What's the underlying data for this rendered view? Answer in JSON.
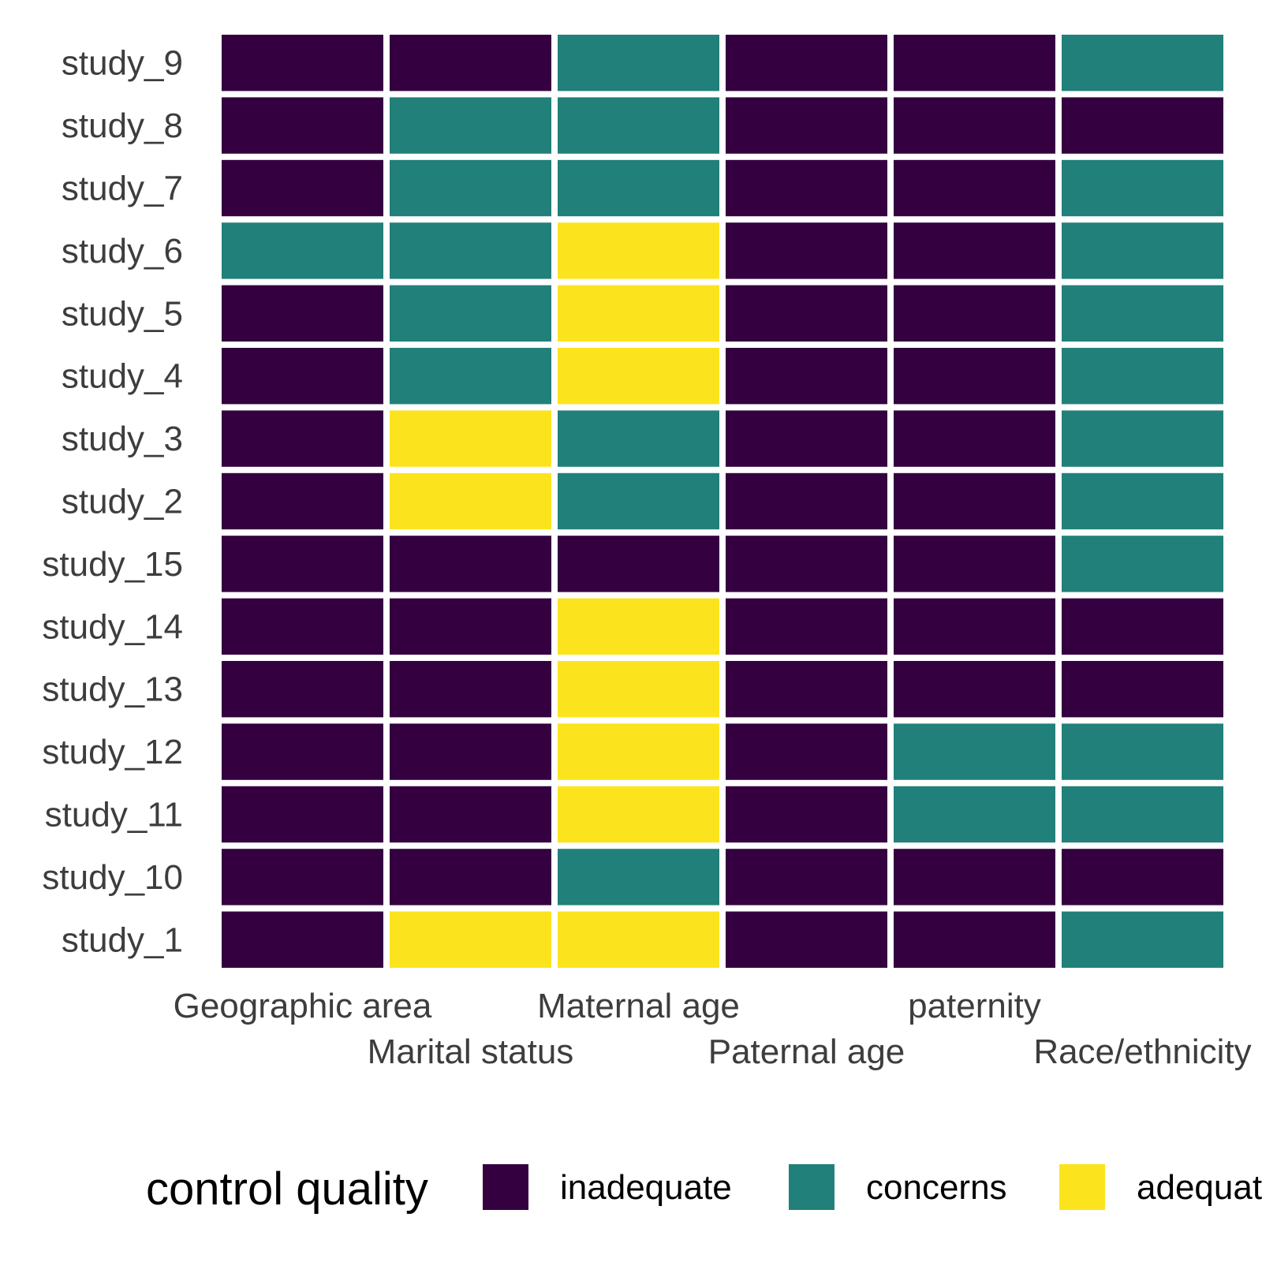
{
  "chart_data": {
    "type": "heatmap",
    "x_categories": [
      "Geographic area",
      "Marital status",
      "Maternal age",
      "Paternal age",
      "paternity",
      "Race/ethnicity"
    ],
    "y_categories": [
      "study_9",
      "study_8",
      "study_7",
      "study_6",
      "study_5",
      "study_4",
      "study_3",
      "study_2",
      "study_15",
      "study_14",
      "study_13",
      "study_12",
      "study_11",
      "study_10",
      "study_1"
    ],
    "levels": [
      "inadequate",
      "concerns",
      "adequate"
    ],
    "level_colors": {
      "inadequate": "#340040",
      "concerns": "#21807a",
      "adequate": "#fbe41d"
    },
    "cells": [
      [
        "inadequate",
        "inadequate",
        "concerns",
        "inadequate",
        "inadequate",
        "concerns"
      ],
      [
        "inadequate",
        "concerns",
        "concerns",
        "inadequate",
        "inadequate",
        "inadequate"
      ],
      [
        "inadequate",
        "concerns",
        "concerns",
        "inadequate",
        "inadequate",
        "concerns"
      ],
      [
        "concerns",
        "concerns",
        "adequate",
        "inadequate",
        "inadequate",
        "concerns"
      ],
      [
        "inadequate",
        "concerns",
        "adequate",
        "inadequate",
        "inadequate",
        "concerns"
      ],
      [
        "inadequate",
        "concerns",
        "adequate",
        "inadequate",
        "inadequate",
        "concerns"
      ],
      [
        "inadequate",
        "adequate",
        "concerns",
        "inadequate",
        "inadequate",
        "concerns"
      ],
      [
        "inadequate",
        "adequate",
        "concerns",
        "inadequate",
        "inadequate",
        "concerns"
      ],
      [
        "inadequate",
        "inadequate",
        "inadequate",
        "inadequate",
        "inadequate",
        "concerns"
      ],
      [
        "inadequate",
        "inadequate",
        "adequate",
        "inadequate",
        "inadequate",
        "inadequate"
      ],
      [
        "inadequate",
        "inadequate",
        "adequate",
        "inadequate",
        "inadequate",
        "inadequate"
      ],
      [
        "inadequate",
        "inadequate",
        "adequate",
        "inadequate",
        "concerns",
        "concerns"
      ],
      [
        "inadequate",
        "inadequate",
        "adequate",
        "inadequate",
        "concerns",
        "concerns"
      ],
      [
        "inadequate",
        "inadequate",
        "concerns",
        "inadequate",
        "inadequate",
        "inadequate"
      ],
      [
        "inadequate",
        "adequate",
        "adequate",
        "inadequate",
        "inadequate",
        "concerns"
      ]
    ],
    "legend": {
      "title": "control quality",
      "position": "bottom",
      "entries": [
        "inadequate",
        "concerns",
        "adequate"
      ]
    },
    "grid": false
  }
}
